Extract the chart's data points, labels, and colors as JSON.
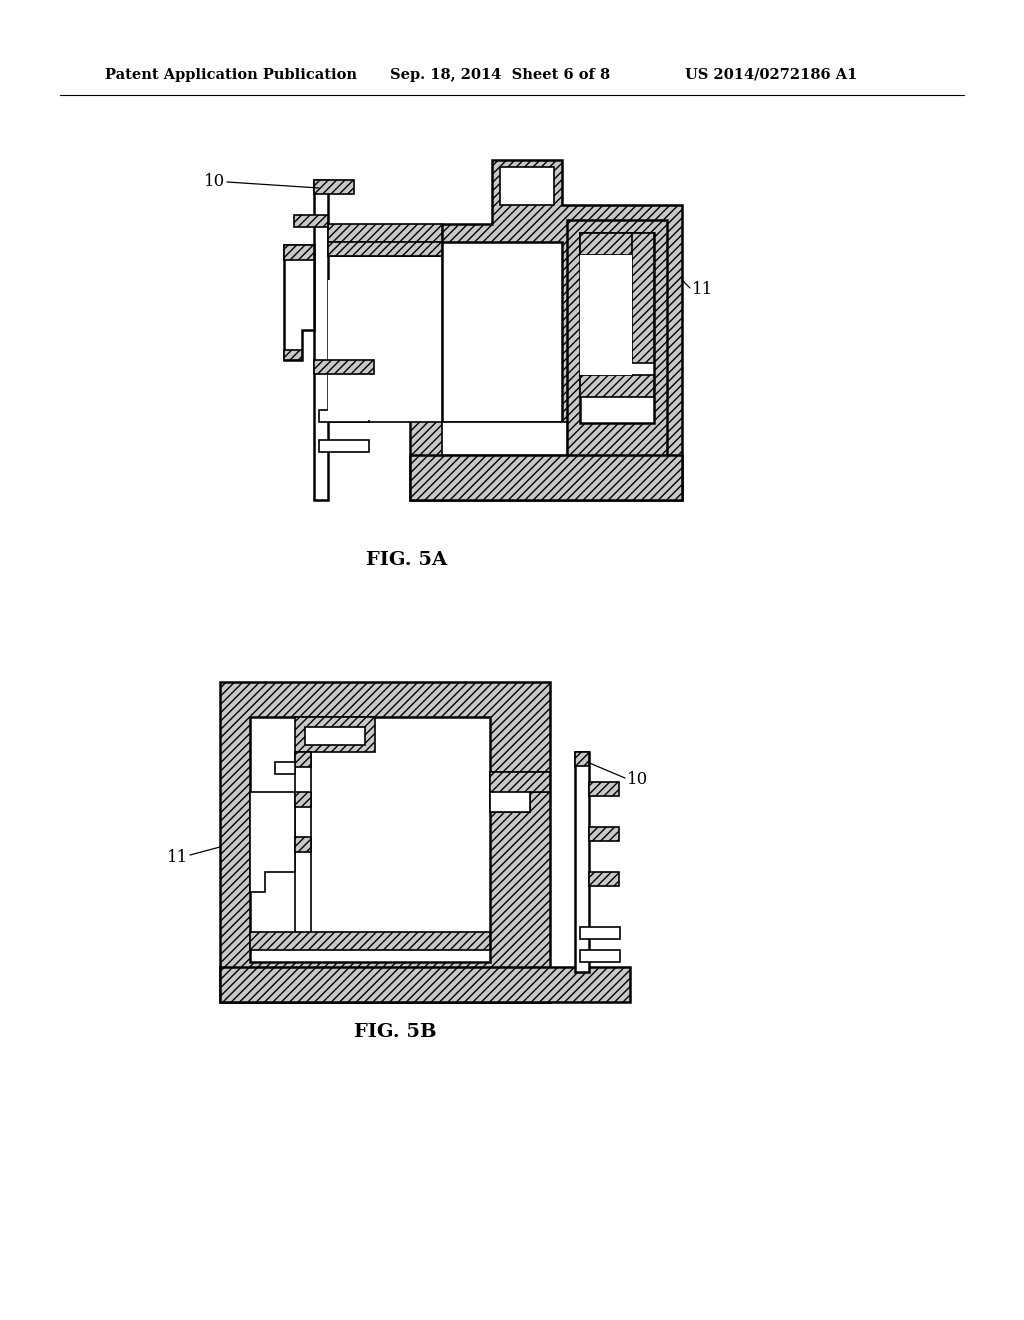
{
  "header_left": "Patent Application Publication",
  "header_mid": "Sep. 18, 2014  Sheet 6 of 8",
  "header_right": "US 2014/0272186 A1",
  "fig5a_label": "FIG. 5A",
  "fig5b_label": "FIG. 5B",
  "label_10a": "10",
  "label_11a": "11",
  "label_10b": "10",
  "label_11b": "11",
  "bg_color": "#ffffff",
  "line_color": "#000000"
}
